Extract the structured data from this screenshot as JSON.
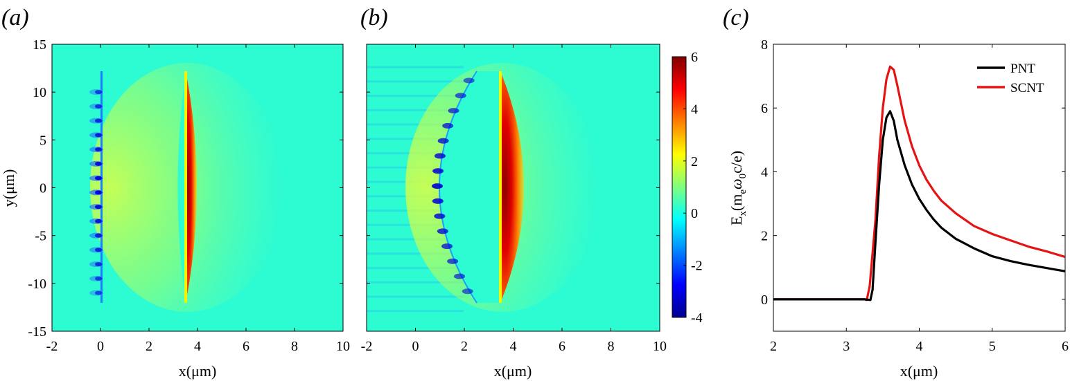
{
  "panels": {
    "a": {
      "label": "(a)"
    },
    "b": {
      "label": "(b)"
    },
    "c": {
      "label": "(c)"
    }
  },
  "colors": {
    "background_field": "#2dfbd2",
    "pnt_line": "#000000",
    "scnt_line": "#e51414"
  },
  "chart_data": [
    {
      "type": "heatmap",
      "panel": "a",
      "xlabel": "x(μm)",
      "ylabel": "y(μm)",
      "xlim": [
        -2,
        10
      ],
      "ylim": [
        -15,
        15
      ],
      "xticks": [
        "-2",
        "0",
        "2",
        "4",
        "6",
        "8",
        "10"
      ],
      "yticks": [
        "-15",
        "-10",
        "-5",
        "0",
        "5",
        "10",
        "15"
      ],
      "features": {
        "foil_x": 0,
        "foil_half_height": 12,
        "rear_sheath_x": 3.5,
        "rear_sheath_half_height": 12,
        "peak_value": 6
      }
    },
    {
      "type": "heatmap",
      "panel": "b",
      "xlabel": "x(μm)",
      "xlim": [
        -2,
        10
      ],
      "ylim": [
        -15,
        15
      ],
      "xticks": [
        "-2",
        "0",
        "2",
        "4",
        "6",
        "8",
        "10"
      ],
      "features": {
        "curved_front_vertex_x": 0,
        "rear_sheath_x": 3.5,
        "rear_sheath_half_height": 12,
        "peak_value": 6
      },
      "colorbar": {
        "range": [
          -4,
          6
        ],
        "ticks": [
          "-4",
          "-2",
          "0",
          "2",
          "4",
          "6"
        ]
      }
    },
    {
      "type": "line",
      "panel": "c",
      "xlabel": "x(μm)",
      "ylabel": "E",
      "xlim": [
        2,
        6
      ],
      "ylim": [
        -1,
        8
      ],
      "xticks": [
        "2",
        "3",
        "4",
        "5",
        "6"
      ],
      "yticks": [
        "0",
        "2",
        "4",
        "6",
        "8"
      ],
      "legend_position": "top-right",
      "series": [
        {
          "name": "PNT",
          "x": [
            2.0,
            2.5,
            3.0,
            3.25,
            3.33,
            3.36,
            3.4,
            3.45,
            3.5,
            3.55,
            3.6,
            3.65,
            3.7,
            3.8,
            3.9,
            4.0,
            4.1,
            4.2,
            4.3,
            4.5,
            4.75,
            5.0,
            5.25,
            5.5,
            5.75,
            6.0
          ],
          "y": [
            0.0,
            0.0,
            0.0,
            0.0,
            -0.02,
            0.3,
            1.8,
            3.6,
            5.0,
            5.7,
            5.9,
            5.6,
            5.0,
            4.2,
            3.6,
            3.15,
            2.8,
            2.5,
            2.25,
            1.9,
            1.6,
            1.35,
            1.2,
            1.08,
            0.98,
            0.88
          ]
        },
        {
          "name": "SCNT",
          "x": [
            2.0,
            2.5,
            3.0,
            3.25,
            3.28,
            3.32,
            3.4,
            3.45,
            3.5,
            3.55,
            3.6,
            3.65,
            3.7,
            3.8,
            3.9,
            4.0,
            4.1,
            4.2,
            4.3,
            4.5,
            4.75,
            5.0,
            5.25,
            5.5,
            5.75,
            6.0
          ],
          "y": [
            0.0,
            0.0,
            0.0,
            0.0,
            -0.02,
            0.4,
            2.5,
            4.5,
            6.0,
            6.9,
            7.3,
            7.2,
            6.7,
            5.6,
            4.8,
            4.2,
            3.75,
            3.4,
            3.1,
            2.7,
            2.3,
            2.05,
            1.85,
            1.65,
            1.5,
            1.33
          ]
        }
      ]
    }
  ]
}
